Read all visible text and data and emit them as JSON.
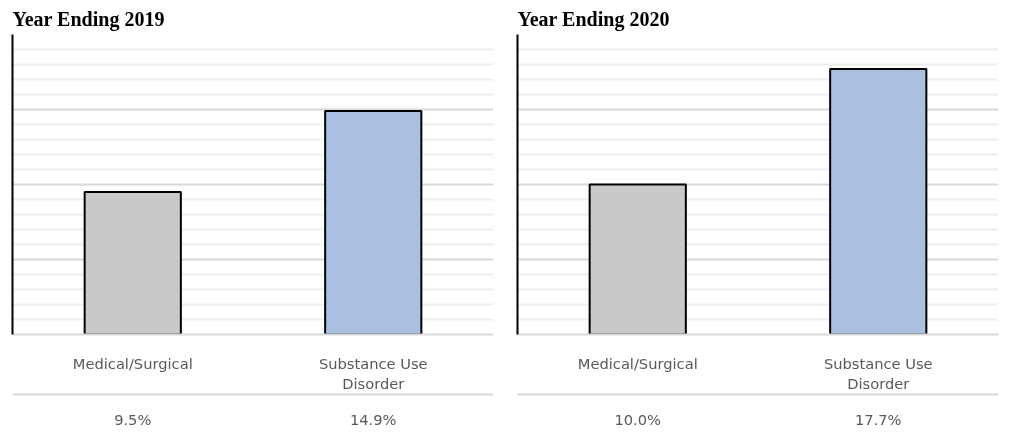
{
  "chart_data": [
    {
      "type": "bar",
      "title": "Year Ending  2019",
      "categories": [
        "Medical/Surgical",
        "Substance Use Disorder"
      ],
      "values": [
        9.5,
        14.9
      ],
      "colors": [
        "#c9c9c9",
        "#a9c0e0"
      ],
      "value_labels": [
        "9.5%",
        "14.9%"
      ],
      "ylim": [
        0,
        20
      ],
      "grid": "y",
      "tick_labels": "x"
    },
    {
      "type": "bar",
      "title": "Year Ending  2020",
      "categories": [
        "Medical/Surgical",
        "Substance Use Disorder"
      ],
      "values": [
        10.0,
        17.7
      ],
      "colors": [
        "#c9c9c9",
        "#a9c0e0"
      ],
      "value_labels": [
        "10.0%",
        "17.7%"
      ],
      "ylim": [
        0,
        20
      ],
      "grid": "y",
      "tick_labels": "x"
    }
  ]
}
